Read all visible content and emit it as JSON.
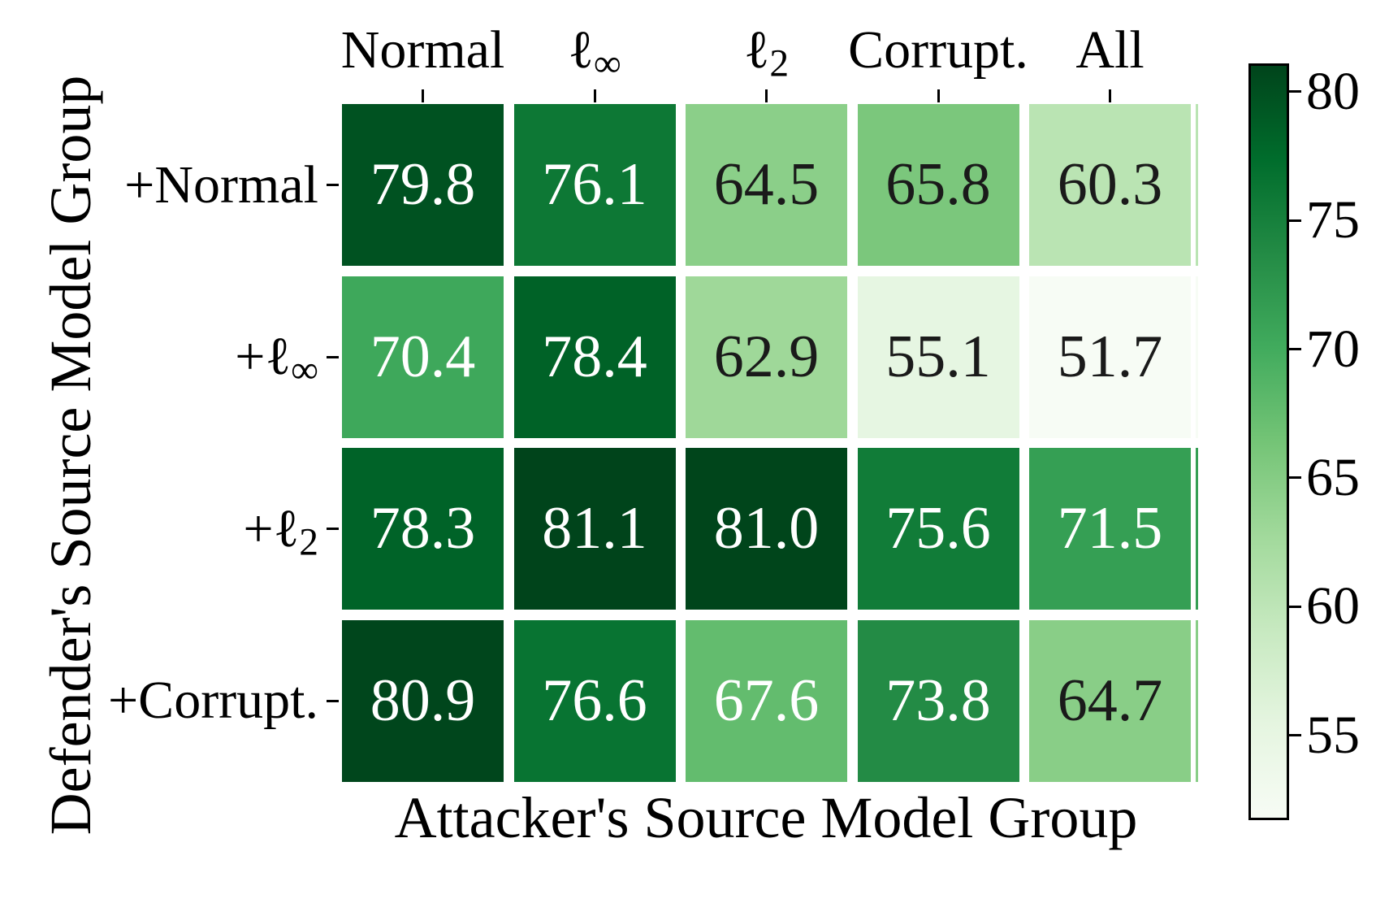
{
  "figure": {
    "xlabel": "Attacker's Source Model Group",
    "ylabel": "Defender's Source Model Group"
  },
  "chart_data": {
    "type": "heatmap",
    "title": "",
    "xlabel": "Attacker's Source Model Group",
    "ylabel": "Defender's Source Model Group",
    "x_categories": [
      "Normal",
      "ℓ∞",
      "ℓ2",
      "Corrupt.",
      "All"
    ],
    "y_categories": [
      "+Normal",
      "+ℓ∞",
      "+ℓ2",
      "+Corrupt."
    ],
    "x_category_parts": [
      {
        "base": "Normal",
        "sub": ""
      },
      {
        "base": "ℓ",
        "sub": "∞"
      },
      {
        "base": "ℓ",
        "sub": "2"
      },
      {
        "base": "Corrupt.",
        "sub": ""
      },
      {
        "base": "All",
        "sub": ""
      }
    ],
    "y_category_parts": [
      {
        "base": "+Normal",
        "sub": ""
      },
      {
        "base": "+ℓ",
        "sub": "∞"
      },
      {
        "base": "+ℓ",
        "sub": "2"
      },
      {
        "base": "+Corrupt.",
        "sub": ""
      }
    ],
    "values": [
      [
        79.8,
        76.1,
        64.5,
        65.8,
        60.3
      ],
      [
        70.4,
        78.4,
        62.9,
        55.1,
        51.7
      ],
      [
        78.3,
        81.1,
        81.0,
        75.6,
        71.5
      ],
      [
        80.9,
        76.6,
        67.6,
        73.8,
        64.7
      ]
    ],
    "value_labels": [
      [
        "79.8",
        "76.1",
        "64.5",
        "65.8",
        "60.3"
      ],
      [
        "70.4",
        "78.4",
        "62.9",
        "55.1",
        "51.7"
      ],
      [
        "78.3",
        "81.1",
        "81.0",
        "75.6",
        "71.5"
      ],
      [
        "80.9",
        "76.6",
        "67.6",
        "73.8",
        "64.7"
      ]
    ],
    "cell_colors": [
      [
        "#005221",
        "#0d7835",
        "#8bcf89",
        "#7bc77c",
        "#bae4b3"
      ],
      [
        "#3ea85b",
        "#006227",
        "#9fd899",
        "#e6f6e2",
        "#f7fcf5"
      ],
      [
        "#006328",
        "#00441b",
        "#00451b",
        "#117c38",
        "#359f54"
      ],
      [
        "#00461c",
        "#087432",
        "#63bc6e",
        "#238b45",
        "#89ce87"
      ]
    ],
    "cell_text_colors": [
      [
        "#ffffff",
        "#ffffff",
        "#1a1a1a",
        "#1a1a1a",
        "#1a1a1a"
      ],
      [
        "#ffffff",
        "#ffffff",
        "#1a1a1a",
        "#1a1a1a",
        "#1a1a1a"
      ],
      [
        "#ffffff",
        "#ffffff",
        "#ffffff",
        "#ffffff",
        "#ffffff"
      ],
      [
        "#ffffff",
        "#ffffff",
        "#ffffff",
        "#ffffff",
        "#1a1a1a"
      ]
    ],
    "colormap": "Greens",
    "vmin": 51.7,
    "vmax": 81.1,
    "colorbar_position": "right",
    "colorbar_tick_labels": [
      "80",
      "75",
      "70",
      "65",
      "60",
      "55"
    ],
    "colorbar_tick_values": [
      80,
      75,
      70,
      65,
      60,
      55
    ],
    "colorbar_gradient_top_to_bottom": [
      {
        "pos": 0.0,
        "color": "#00441b"
      },
      {
        "pos": 0.125,
        "color": "#006d2c"
      },
      {
        "pos": 0.25,
        "color": "#238b45"
      },
      {
        "pos": 0.375,
        "color": "#41ab5d"
      },
      {
        "pos": 0.5,
        "color": "#74c476"
      },
      {
        "pos": 0.625,
        "color": "#a1d99b"
      },
      {
        "pos": 0.75,
        "color": "#c7e9c0"
      },
      {
        "pos": 0.875,
        "color": "#e5f5e0"
      },
      {
        "pos": 1.0,
        "color": "#f7fcf5"
      }
    ],
    "grid": false,
    "legend": "colorbar"
  }
}
